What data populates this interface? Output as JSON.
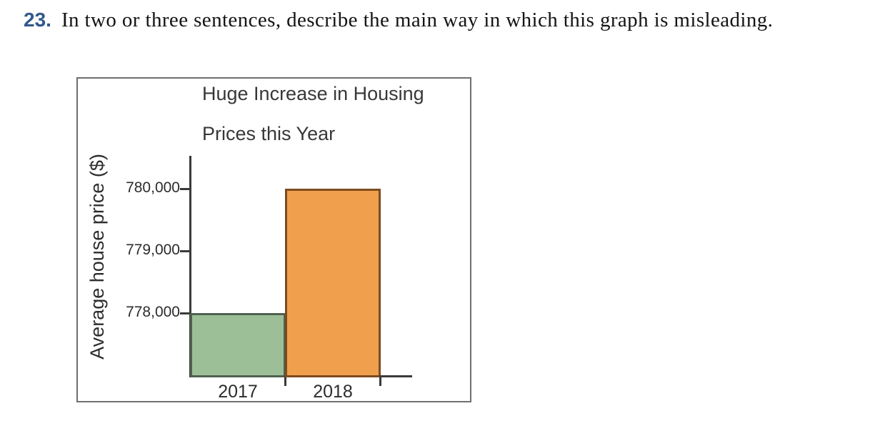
{
  "question": {
    "number": "23.",
    "text": "In two or three sentences, describe the main way in which this graph is misleading."
  },
  "chart_data": {
    "type": "bar",
    "title": "Huge Increase in Housing Prices this Year",
    "title_lines": [
      "Huge Increase in Housing",
      "Prices this Year"
    ],
    "ylabel": "Average house price ($)",
    "xlabel": "",
    "categories": [
      "2017",
      "2018"
    ],
    "values": [
      778000,
      780000
    ],
    "bar_colors": [
      "#9cbf97",
      "#f0a04c"
    ],
    "bar_border_colors": [
      "#50604f",
      "#7d4b1f"
    ],
    "yticks": [
      780000,
      779000,
      778000
    ],
    "ytick_labels": [
      "780,000",
      "779,000",
      "778,000"
    ],
    "ylim": [
      777000,
      780500
    ],
    "grid": false,
    "legend": false
  },
  "colors": {
    "question_number": "#31598c",
    "body_text": "#141414",
    "axis": "#3a3a3a",
    "chart_border": "#6f6f6f"
  }
}
